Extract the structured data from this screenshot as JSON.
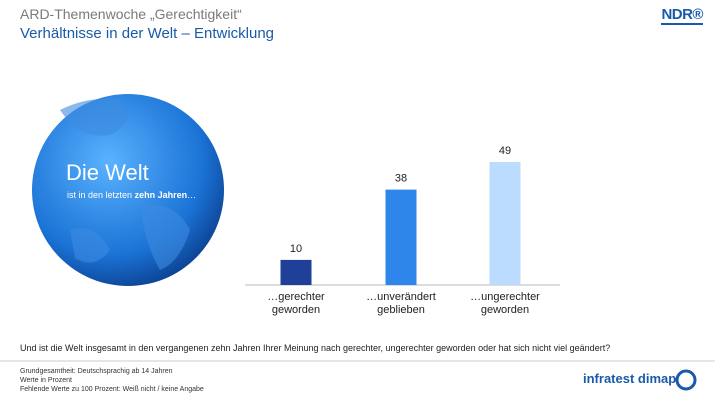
{
  "header": {
    "title": "ARD-Themenwoche „Gerechtigkeit“",
    "subtitle": "Verhältnisse in der Welt – Entwicklung",
    "logo": "NDR®"
  },
  "globe": {
    "title": "Die Welt",
    "text": "ist in den letzten",
    "emphasis": "zehn Jahren",
    "ellipsis": "…"
  },
  "chart_data": {
    "type": "bar",
    "categories": [
      "…gerechter geworden",
      "…unverändert geblieben",
      "…ungerechter geworden"
    ],
    "values": [
      10,
      38,
      49
    ],
    "colors": [
      "#1f3f99",
      "#2f86ea",
      "#bcdcff"
    ]
  },
  "question": "Und ist die Welt insgesamt in den vergangenen zehn Jahren Ihrer Meinung nach gerechter, ungerechter geworden oder hat sich nicht viel geändert?",
  "notes": [
    "Grundgesamtheit: Deutschsprachig ab 14 Jahren",
    "Werte in Prozent",
    "Fehlende Werte zu 100 Prozent: Weiß nicht / keine Angabe"
  ],
  "footer_logo": "infratest dimap"
}
